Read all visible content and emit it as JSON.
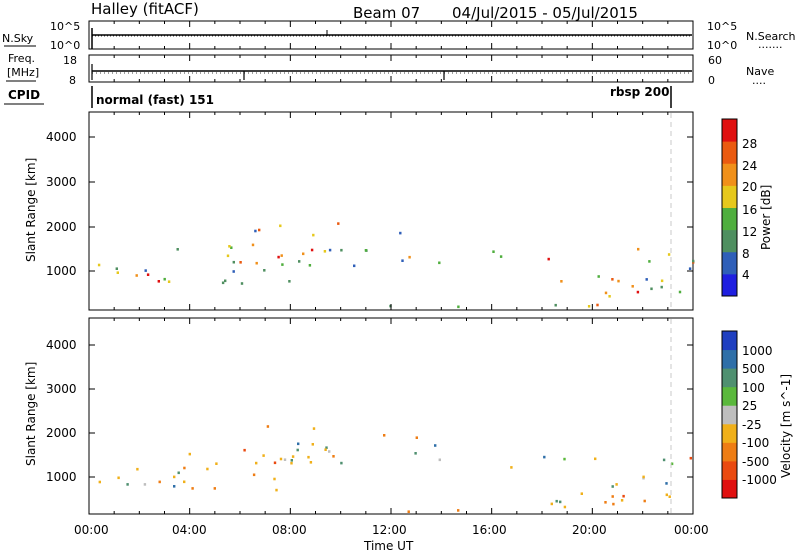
{
  "header": {
    "station": "Halley (fitACF)",
    "beam": "Beam 07",
    "date_range": "04/Jul/2015 - 05/Jul/2015"
  },
  "chart_data": [
    {
      "type": "line",
      "name": "noise-panel",
      "left_label": "N.Sky",
      "right_label": "N.Search",
      "right_legend_glyph": ".......",
      "left_ticks": [
        "10^5",
        "10^0"
      ],
      "right_ticks": [
        "10^5",
        "10^0"
      ],
      "ylim": [
        0,
        5
      ],
      "x": [
        0,
        24
      ],
      "nsky_level": 2.0,
      "nsearch_level": 2.1
    },
    {
      "type": "line",
      "name": "freq-panel",
      "left_label_top": "Freq.",
      "left_label_unit": "[MHz]",
      "right_label": "Nave",
      "right_legend_glyph": "....",
      "left_ticks": [
        "18",
        "8"
      ],
      "right_ticks": [
        "60",
        "0"
      ],
      "freq_mhz": 11,
      "ylim": [
        8,
        18
      ]
    },
    {
      "type": "table",
      "name": "cpid-strip",
      "label": "CPID",
      "modes": [
        {
          "text": "normal (fast) 151",
          "start_h": 0,
          "end_h": 23.4
        },
        {
          "text": "rbsp 200",
          "start_h": 23.4,
          "end_h": 24
        }
      ]
    },
    {
      "type": "heatmap",
      "name": "power-panel",
      "ylabel": "Slant Range [km]",
      "yticks": [
        1000,
        2000,
        3000,
        4000
      ],
      "ylim": [
        180,
        4600
      ],
      "xlim": [
        0,
        24
      ],
      "colorbar_label": "Power [dB]",
      "colorbar_ticks": [
        4,
        8,
        12,
        16,
        20,
        24,
        28
      ],
      "colorbar_range": [
        0,
        32
      ],
      "colorbar_colors": [
        "#1f1fe0",
        "#2f5fb8",
        "#4f8f60",
        "#4fae3e",
        "#e6c81c",
        "#f0901a",
        "#ea5a10",
        "#e01010"
      ]
    },
    {
      "type": "heatmap",
      "name": "velocity-panel",
      "ylabel": "Slant Range [km]",
      "yticks": [
        1000,
        2000,
        3000,
        4000
      ],
      "ylim": [
        180,
        4600
      ],
      "xlim": [
        0,
        24
      ],
      "xlabel": "Time UT",
      "xticks": [
        "00:00",
        "04:00",
        "08:00",
        "12:00",
        "16:00",
        "20:00",
        "00:00"
      ],
      "colorbar_label": "Velocity [m s^-1]",
      "colorbar_ticks": [
        "1000",
        "500",
        "100",
        "25",
        "-25",
        "-100",
        "-500",
        "-1000"
      ],
      "colorbar_colors": [
        "#1f3fc0",
        "#2f6fa8",
        "#4f9070",
        "#5ab83c",
        "#bebebe",
        "#f0b01a",
        "#ee7d14",
        "#ea4a10",
        "#e01010"
      ]
    }
  ]
}
